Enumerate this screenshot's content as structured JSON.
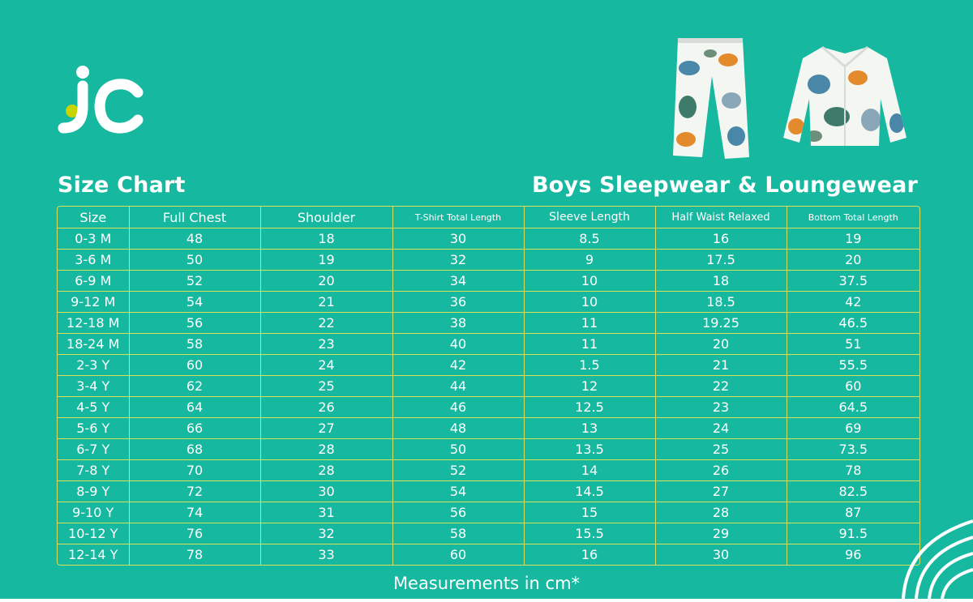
{
  "brand": {
    "logo_text": "jc",
    "logo_dot_color": "#c8d400"
  },
  "header": {
    "left_title": "Size Chart",
    "right_title": "Boys Sleepwear & Loungewear"
  },
  "table": {
    "columns": [
      "Size",
      "Full Chest",
      "Shoulder",
      "T-Shirt Total Length",
      "Sleeve Length",
      "Half Waist Relaxed",
      "Bottom Total Length"
    ],
    "rows": [
      [
        "0-3 M",
        "48",
        "18",
        "30",
        "8.5",
        "16",
        "19"
      ],
      [
        "3-6 M",
        "50",
        "19",
        "32",
        "9",
        "17.5",
        "20"
      ],
      [
        "6-9 M",
        "52",
        "20",
        "34",
        "10",
        "18",
        "37.5"
      ],
      [
        "9-12 M",
        "54",
        "21",
        "36",
        "10",
        "18.5",
        "42"
      ],
      [
        "12-18 M",
        "56",
        "22",
        "38",
        "11",
        "19.25",
        "46.5"
      ],
      [
        "18-24 M",
        "58",
        "23",
        "40",
        "11",
        "20",
        "51"
      ],
      [
        "2-3 Y",
        "60",
        "24",
        "42",
        "1.5",
        "21",
        "55.5"
      ],
      [
        "3-4 Y",
        "62",
        "25",
        "44",
        "12",
        "22",
        "60"
      ],
      [
        "4-5 Y",
        "64",
        "26",
        "46",
        "12.5",
        "23",
        "64.5"
      ],
      [
        "5-6 Y",
        "66",
        "27",
        "48",
        "13",
        "24",
        "69"
      ],
      [
        "6-7 Y",
        "68",
        "28",
        "50",
        "13.5",
        "25",
        "73.5"
      ],
      [
        "7-8 Y",
        "70",
        "28",
        "52",
        "14",
        "26",
        "78"
      ],
      [
        "8-9 Y",
        "72",
        "30",
        "54",
        "14.5",
        "27",
        "82.5"
      ],
      [
        "9-10 Y",
        "74",
        "31",
        "56",
        "15",
        "28",
        "87"
      ],
      [
        "10-12 Y",
        "76",
        "32",
        "58",
        "15.5",
        "29",
        "91.5"
      ],
      [
        "12-14 Y",
        "78",
        "33",
        "60",
        "16",
        "30",
        "96"
      ]
    ]
  },
  "footer": {
    "note": "Measurements in cm*"
  },
  "colors": {
    "background": "#16b8a0",
    "grid_lines": "#d7e05a",
    "text": "#ffffff"
  },
  "icons": {
    "pants_image": "dinosaur-print-pajama-pants",
    "shirt_image": "dinosaur-print-pajama-shirt",
    "decorative_arcs": "white-rainbow-arcs"
  }
}
